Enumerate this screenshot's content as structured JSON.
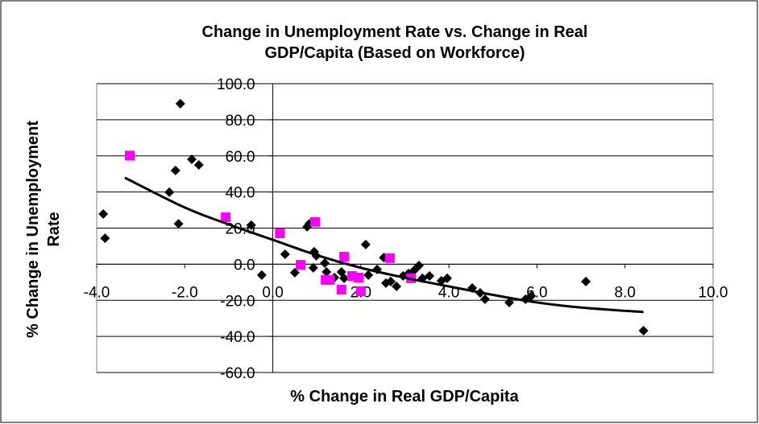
{
  "chart_data": {
    "type": "scatter",
    "title": [
      "Change in Unemployment Rate vs. Change in Real",
      "GDP/Capita (Based on Workforce)"
    ],
    "x_label": "% Change in Real GDP/Capita",
    "y_label": [
      "% Change in Unemployment",
      "Rate"
    ],
    "xlim": [
      -4,
      10
    ],
    "ylim": [
      -60,
      100
    ],
    "xticks": [
      {
        "value": -4,
        "label": "-4.0"
      },
      {
        "value": -2,
        "label": "-2.0"
      },
      {
        "value": 0,
        "label": "0.0"
      },
      {
        "value": 2,
        "label": "2.0"
      },
      {
        "value": 4,
        "label": "4.0"
      },
      {
        "value": 6,
        "label": "6.0"
      },
      {
        "value": 8,
        "label": "8.0"
      },
      {
        "value": 10,
        "label": "10.0"
      }
    ],
    "yticks": [
      {
        "value": -60,
        "label": "-60.0"
      },
      {
        "value": -40,
        "label": "-40.0"
      },
      {
        "value": -20,
        "label": "-20.0"
      },
      {
        "value": 0,
        "label": "0.0"
      },
      {
        "value": 20,
        "label": "20.0"
      },
      {
        "value": 40,
        "label": "40.0"
      },
      {
        "value": 60,
        "label": "60.0"
      },
      {
        "value": 80,
        "label": "80.0"
      },
      {
        "value": 100,
        "label": "100.0"
      }
    ],
    "grid": true,
    "series": [
      {
        "color": "#000000",
        "marker": "diamond",
        "x": [
          -3.85,
          -3.81,
          -2.35,
          -2.21,
          -2.14,
          -1.84,
          -1.68,
          -2.1,
          -0.49,
          -0.25,
          0.28,
          0.5,
          0.94,
          0.78,
          0.83,
          0.92,
          0.99,
          1.18,
          1.22,
          1.4,
          1.56,
          1.62,
          2.11,
          2.17,
          2.37,
          2.52,
          2.57,
          2.68,
          2.81,
          2.96,
          3.08,
          3.21,
          3.32,
          3.4,
          3.56,
          3.83,
          3.96,
          4.53,
          4.71,
          4.82,
          5.37,
          5.74,
          5.87,
          7.11,
          8.42
        ],
        "values": [
          27.8,
          14.4,
          39.9,
          51.9,
          22.4,
          58.1,
          55.0,
          88.9,
          21.6,
          -6.0,
          5.5,
          -4.7,
          6.9,
          20.7,
          22.4,
          -2.0,
          4.6,
          0.6,
          -4.3,
          -7.4,
          -4.3,
          -7.8,
          10.9,
          -6.0,
          -2.9,
          3.7,
          -10.5,
          -9.6,
          -12.3,
          -6.5,
          -5.2,
          -3.4,
          -0.7,
          -7.8,
          -6.5,
          -9.2,
          -7.8,
          -13.2,
          -15.9,
          -19.4,
          -21.2,
          -19.4,
          -17.6,
          -9.6,
          -36.8
        ]
      },
      {
        "color": "#ff00ff",
        "marker": "square",
        "x": [
          -3.25,
          -1.07,
          0.16,
          0.63,
          0.96,
          1.2,
          1.29,
          1.62,
          1.56,
          1.8,
          1.95,
          2.0,
          2.66,
          3.14
        ],
        "values": [
          60.2,
          26.0,
          17.1,
          -0.3,
          23.4,
          -8.7,
          -8.7,
          4.2,
          -14.1,
          -6.5,
          -7.4,
          -15.0,
          3.4,
          -7.8
        ]
      }
    ],
    "trendline": {
      "color": "#000000",
      "x": [
        -3.36,
        -2,
        -1,
        0,
        1,
        2,
        3,
        4,
        5,
        6,
        7,
        8.42
      ],
      "values": [
        47.9,
        31.4,
        22,
        13.5,
        5,
        -2.0,
        -7.5,
        -12.3,
        -17,
        -21.2,
        -24,
        -26.5
      ]
    }
  }
}
